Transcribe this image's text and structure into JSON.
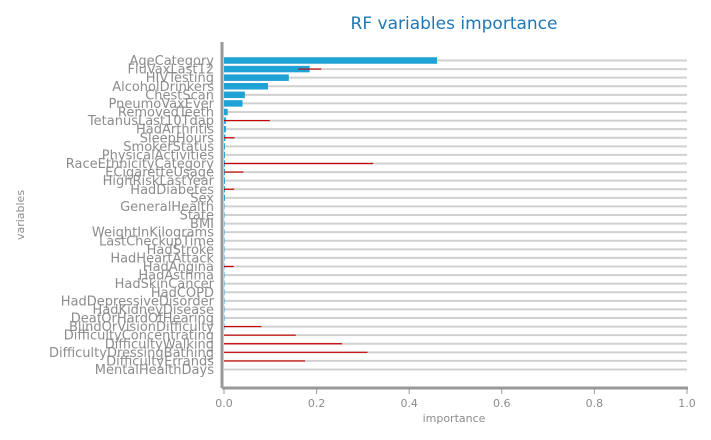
{
  "chart_data": {
    "type": "bar",
    "orientation": "horizontal",
    "title": "RF variables importance",
    "xlabel": "importance",
    "ylabel": "variables",
    "xlim": [
      0,
      1.0
    ],
    "x_ticks": [
      "0.0",
      "0.2",
      "0.4",
      "0.6",
      "0.8",
      "1.0"
    ],
    "grid": "horizontal lines per category",
    "bar_color": "#1fa2d6",
    "error_color": "#cc0000",
    "categories": [
      "AgeCategory",
      "FluVaxLast12",
      "HIVTesting",
      "AlcoholDrinkers",
      "ChestScan",
      "PneumoVaxEver",
      "RemovedTeeth",
      "TetanusLast10Tdap",
      "HadArthritis",
      "SleepHours",
      "SmokerStatus",
      "PhysicalActivities",
      "RaceEthnicityCategory",
      "ECigaretteUsage",
      "HighRiskLastYear",
      "HadDiabetes",
      "Sex",
      "GeneralHealth",
      "State",
      "BMI",
      "WeightInKilograms",
      "LastCheckupTime",
      "HadStroke",
      "HadHeartAttack",
      "HadAngina",
      "HadAsthma",
      "HadSkinCancer",
      "HadCOPD",
      "HadDepressiveDisorder",
      "HadKidneyDisease",
      "DeafOrHardOfHearing",
      "BlindOrVisionDifficulty",
      "DifficultyConcentrating",
      "DifficultyWalking",
      "DifficultyDressingBathing",
      "DifficultyErrands",
      "MentalHealthDays"
    ],
    "values": [
      0.46,
      0.185,
      0.14,
      0.095,
      0.045,
      0.04,
      0.008,
      0.004,
      0.004,
      0.003,
      0.002,
      0.002,
      0.002,
      0.002,
      0.002,
      0.002,
      0.002,
      0.001,
      0.001,
      0.001,
      0.001,
      0.001,
      0.001,
      0.001,
      0.001,
      0.001,
      0.001,
      0.001,
      0.001,
      0.001,
      0.001,
      0.001,
      0.0,
      0.0,
      0.0,
      0.0,
      0.0
    ],
    "errors": [
      0.0,
      0.025,
      0.0,
      0.0,
      0.0,
      0.0,
      0.0,
      0.095,
      0.0,
      0.02,
      0.0,
      0.0,
      0.32,
      0.04,
      0.0,
      0.02,
      0.0,
      0.0,
      0.0,
      0.0,
      0.0,
      0.0,
      0.0,
      0.0,
      0.02,
      0.0,
      0.0,
      0.0,
      0.0,
      0.0,
      0.0,
      0.08,
      0.155,
      0.255,
      0.31,
      0.175,
      0.0
    ]
  }
}
